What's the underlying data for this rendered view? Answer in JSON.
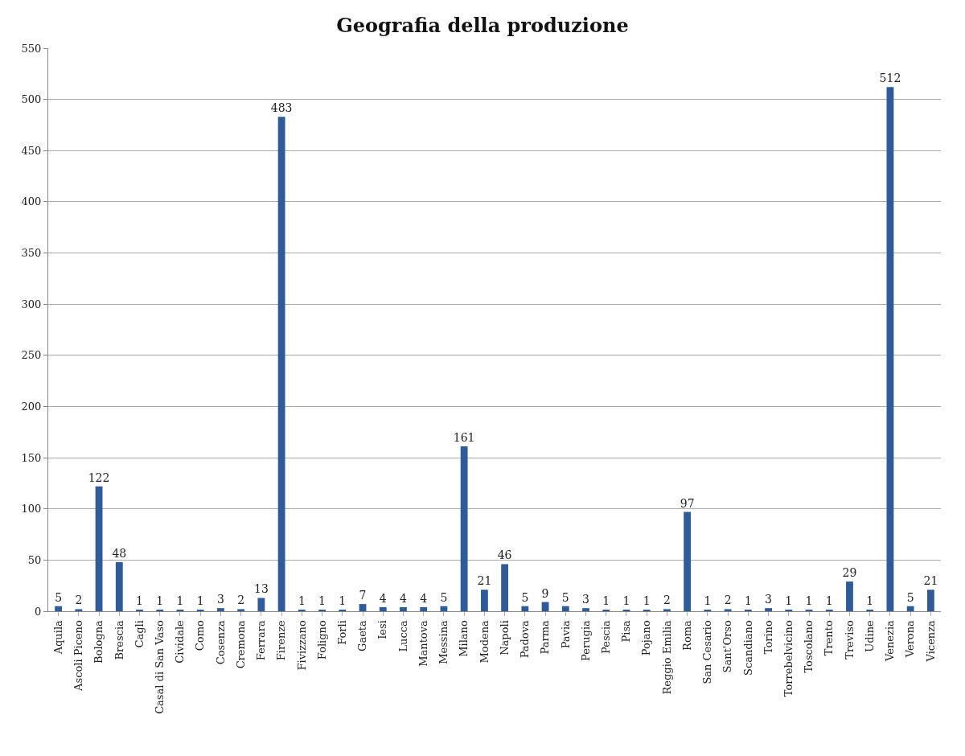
{
  "chart_data": {
    "type": "bar",
    "title": "Geografia della produzione",
    "categories": [
      "Aquila",
      "Ascoli Piceno",
      "Bologna",
      "Brescia",
      "Cagli",
      "Casal di San Vaso",
      "Cividale",
      "Como",
      "Cosenza",
      "Cremona",
      "Ferrara",
      "Firenze",
      "Fivizzano",
      "Foligno",
      "Forli",
      "Gaeta",
      "Iesi",
      "Lucca",
      "Mantova",
      "Messina",
      "Milano",
      "Modena",
      "Napoli",
      "Padova",
      "Parma",
      "Pavia",
      "Perugia",
      "Pescia",
      "Pisa",
      "Pojano",
      "Reggio Emilia",
      "Roma",
      "San Cesario",
      "Sant'Orso",
      "Scandiano",
      "Torino",
      "Torrebelvicino",
      "Toscolano",
      "Trento",
      "Treviso",
      "Udine",
      "Venezia",
      "Verona",
      "Vicenza"
    ],
    "values": [
      5,
      2,
      122,
      48,
      1,
      1,
      1,
      1,
      3,
      2,
      13,
      483,
      1,
      1,
      1,
      7,
      4,
      4,
      4,
      5,
      161,
      21,
      46,
      5,
      9,
      5,
      3,
      1,
      1,
      1,
      2,
      97,
      1,
      2,
      1,
      3,
      1,
      1,
      1,
      29,
      1,
      512,
      5,
      21
    ],
    "color": "#2f5b98",
    "ylim": [
      0,
      550
    ],
    "yticks": [
      0,
      50,
      100,
      150,
      200,
      250,
      300,
      350,
      400,
      450,
      500,
      550
    ],
    "grid": "y",
    "data_labels": true
  }
}
